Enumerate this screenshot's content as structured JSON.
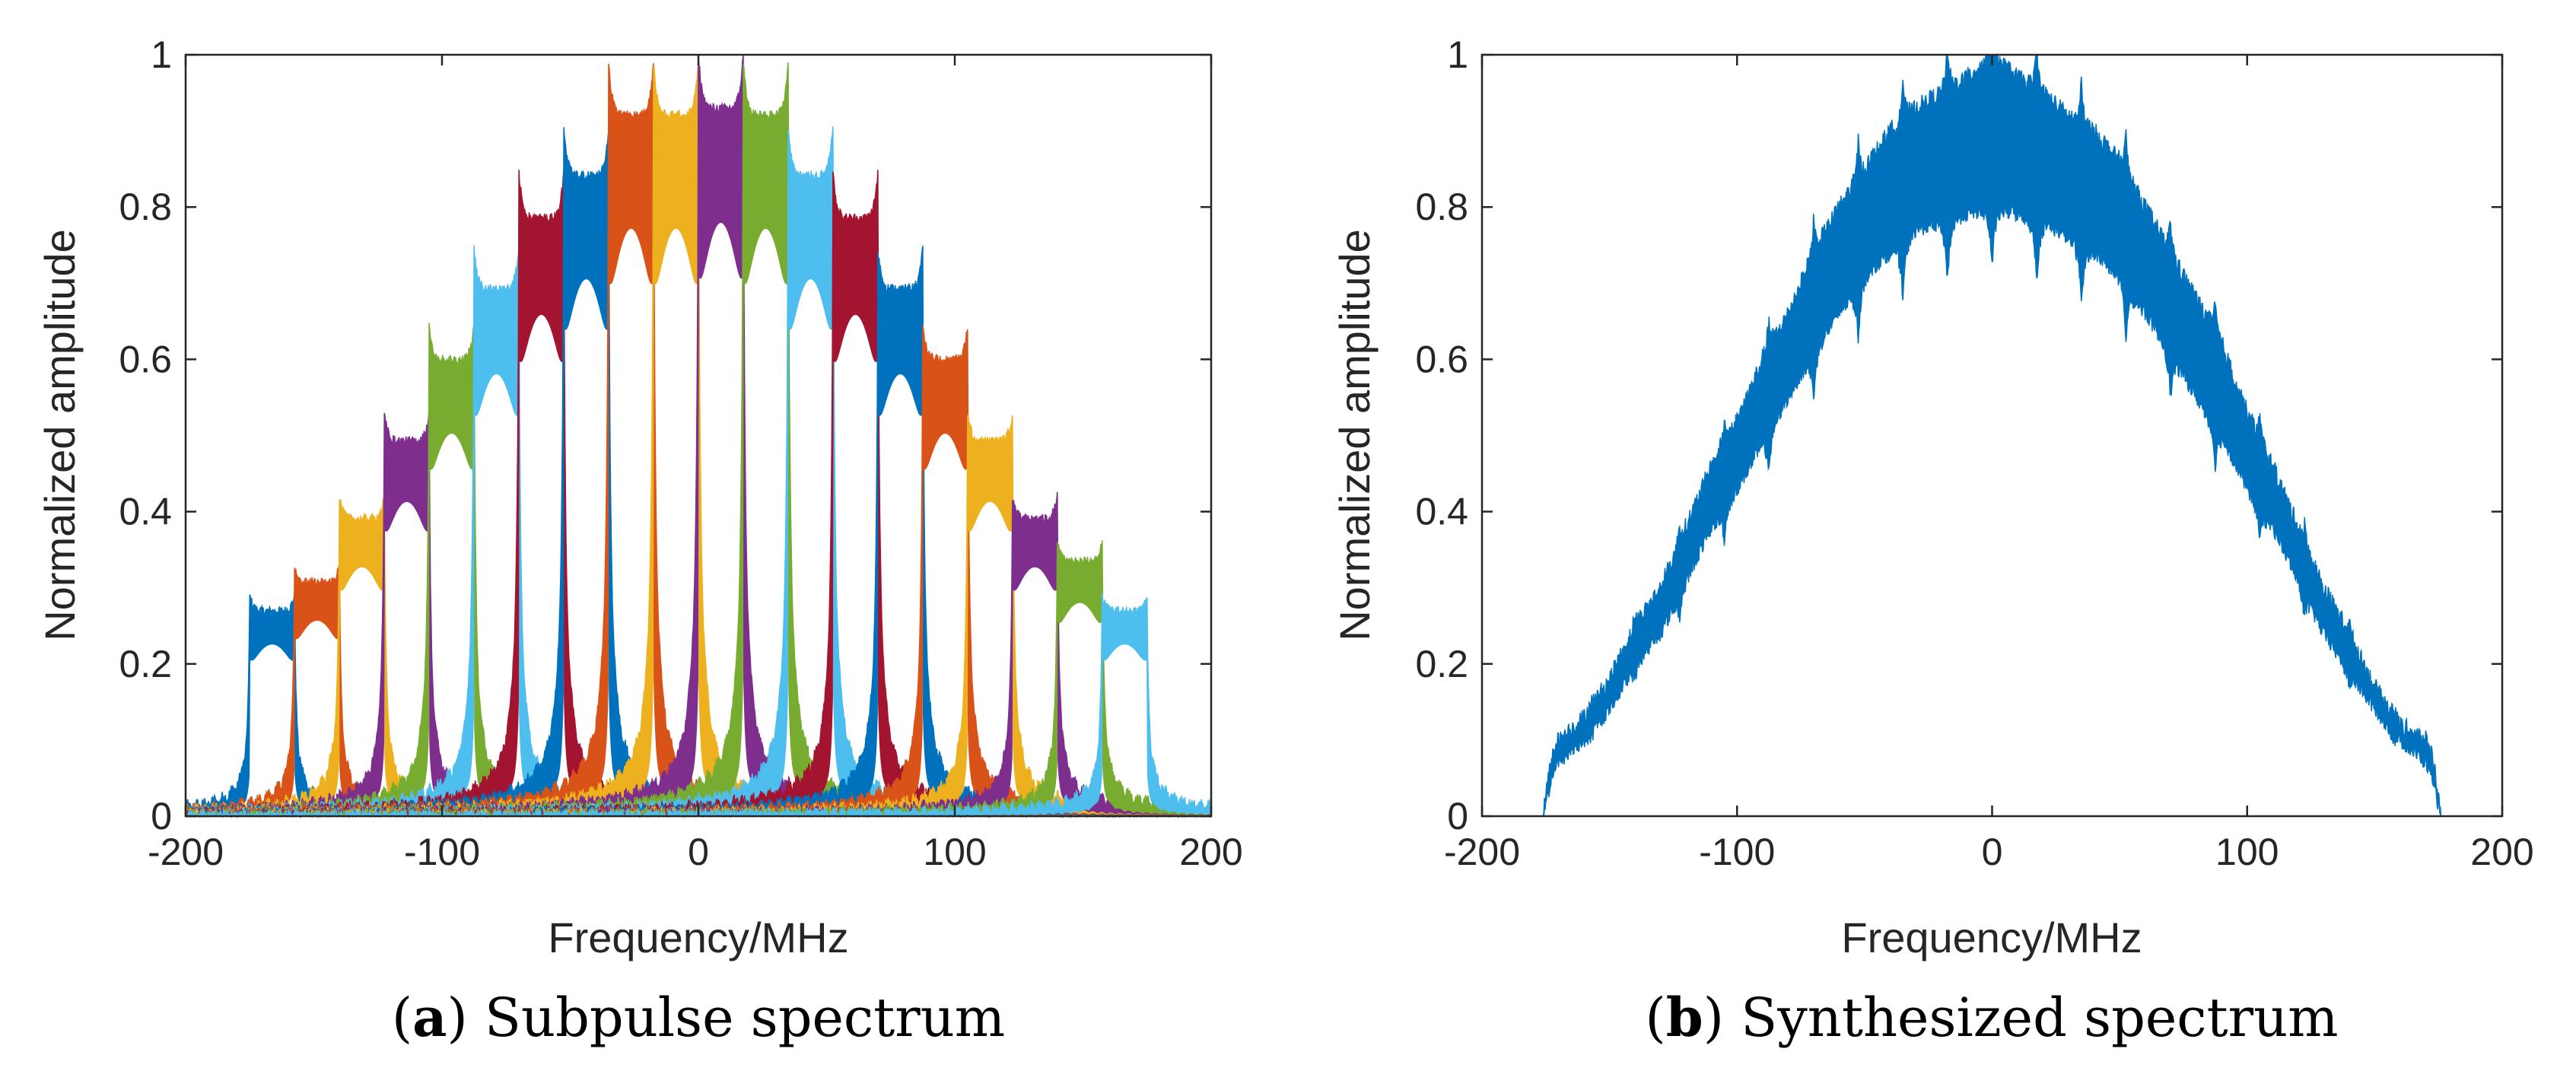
{
  "chart_data": [
    {
      "type": "line",
      "caption_letter": "a",
      "caption_text": ") Subpulse spectrum",
      "caption_open": "(",
      "xlabel": "Frequency/MHz",
      "ylabel": "Normalized amplitude",
      "xlim": [
        -200,
        200
      ],
      "ylim": [
        0,
        1
      ],
      "xticks": [
        "-200",
        "-100",
        "0",
        "100",
        "200"
      ],
      "yticks": [
        "0",
        "0.2",
        "0.4",
        "0.6",
        "0.8",
        "1"
      ],
      "subpulse_bandwidth_mhz": 17.5,
      "series": [
        {
          "center": -166.25,
          "peak": 0.29,
          "color": "#0072BD"
        },
        {
          "center": -148.75,
          "peak": 0.33,
          "color": "#D95319"
        },
        {
          "center": -131.25,
          "peak": 0.42,
          "color": "#EDB120"
        },
        {
          "center": -113.75,
          "peak": 0.53,
          "color": "#7E2F8E"
        },
        {
          "center": -96.25,
          "peak": 0.645,
          "color": "#77AC30"
        },
        {
          "center": -78.75,
          "peak": 0.745,
          "color": "#4DBEEE"
        },
        {
          "center": -61.25,
          "peak": 0.845,
          "color": "#A2142F"
        },
        {
          "center": -43.75,
          "peak": 0.905,
          "color": "#0072BD"
        },
        {
          "center": -26.25,
          "peak": 0.99,
          "color": "#D95319"
        },
        {
          "center": -8.75,
          "peak": 0.99,
          "color": "#EDB120"
        },
        {
          "center": 8.75,
          "peak": 1.0,
          "color": "#7E2F8E"
        },
        {
          "center": 26.25,
          "peak": 0.99,
          "color": "#77AC30"
        },
        {
          "center": 43.75,
          "peak": 0.905,
          "color": "#4DBEEE"
        },
        {
          "center": 61.25,
          "peak": 0.845,
          "color": "#A2142F"
        },
        {
          "center": 78.75,
          "peak": 0.745,
          "color": "#0072BD"
        },
        {
          "center": 96.25,
          "peak": 0.645,
          "color": "#D95319"
        },
        {
          "center": 113.75,
          "peak": 0.53,
          "color": "#EDB120"
        },
        {
          "center": 131.25,
          "peak": 0.42,
          "color": "#7E2F8E"
        },
        {
          "center": 148.75,
          "peak": 0.36,
          "color": "#77AC30"
        },
        {
          "center": 166.25,
          "peak": 0.29,
          "color": "#4DBEEE"
        }
      ]
    },
    {
      "type": "line",
      "caption_letter": "b",
      "caption_text": ") Synthesized spectrum",
      "caption_open": "(",
      "xlabel": "Frequency/MHz",
      "ylabel": "Normalized amplitude",
      "xlim": [
        -200,
        200
      ],
      "ylim": [
        0,
        1
      ],
      "xticks": [
        "-200",
        "-100",
        "0",
        "100",
        "200"
      ],
      "yticks": [
        "0",
        "0.2",
        "0.4",
        "0.6",
        "0.8",
        "1"
      ],
      "series": [
        {
          "color": "#0072BD",
          "x": [
            -200,
            -176,
            -174,
            -172,
            -170,
            -160,
            -150,
            -140,
            -130,
            -120,
            -110,
            -100,
            -90,
            -80,
            -70,
            -60,
            -50,
            -40,
            -30,
            -20,
            -10,
            0,
            10,
            20,
            30,
            40,
            50,
            60,
            70,
            80,
            90,
            100,
            110,
            120,
            130,
            140,
            150,
            160,
            170,
            172,
            174,
            176,
            200
          ],
          "upper": [
            0,
            0,
            0.05,
            0.09,
            0.1,
            0.13,
            0.18,
            0.25,
            0.3,
            0.38,
            0.46,
            0.52,
            0.6,
            0.66,
            0.74,
            0.8,
            0.85,
            0.9,
            0.93,
            0.95,
            0.97,
            1.0,
            0.97,
            0.95,
            0.92,
            0.9,
            0.86,
            0.8,
            0.74,
            0.68,
            0.62,
            0.53,
            0.46,
            0.38,
            0.3,
            0.24,
            0.17,
            0.12,
            0.1,
            0.09,
            0.05,
            0,
            0
          ],
          "lower": [
            0,
            0,
            0.03,
            0.06,
            0.07,
            0.1,
            0.14,
            0.2,
            0.24,
            0.31,
            0.38,
            0.43,
            0.49,
            0.55,
            0.61,
            0.66,
            0.71,
            0.74,
            0.77,
            0.78,
            0.79,
            0.8,
            0.79,
            0.78,
            0.76,
            0.74,
            0.71,
            0.66,
            0.61,
            0.55,
            0.5,
            0.43,
            0.38,
            0.31,
            0.24,
            0.19,
            0.14,
            0.1,
            0.07,
            0.06,
            0.03,
            0,
            0
          ]
        }
      ]
    }
  ]
}
